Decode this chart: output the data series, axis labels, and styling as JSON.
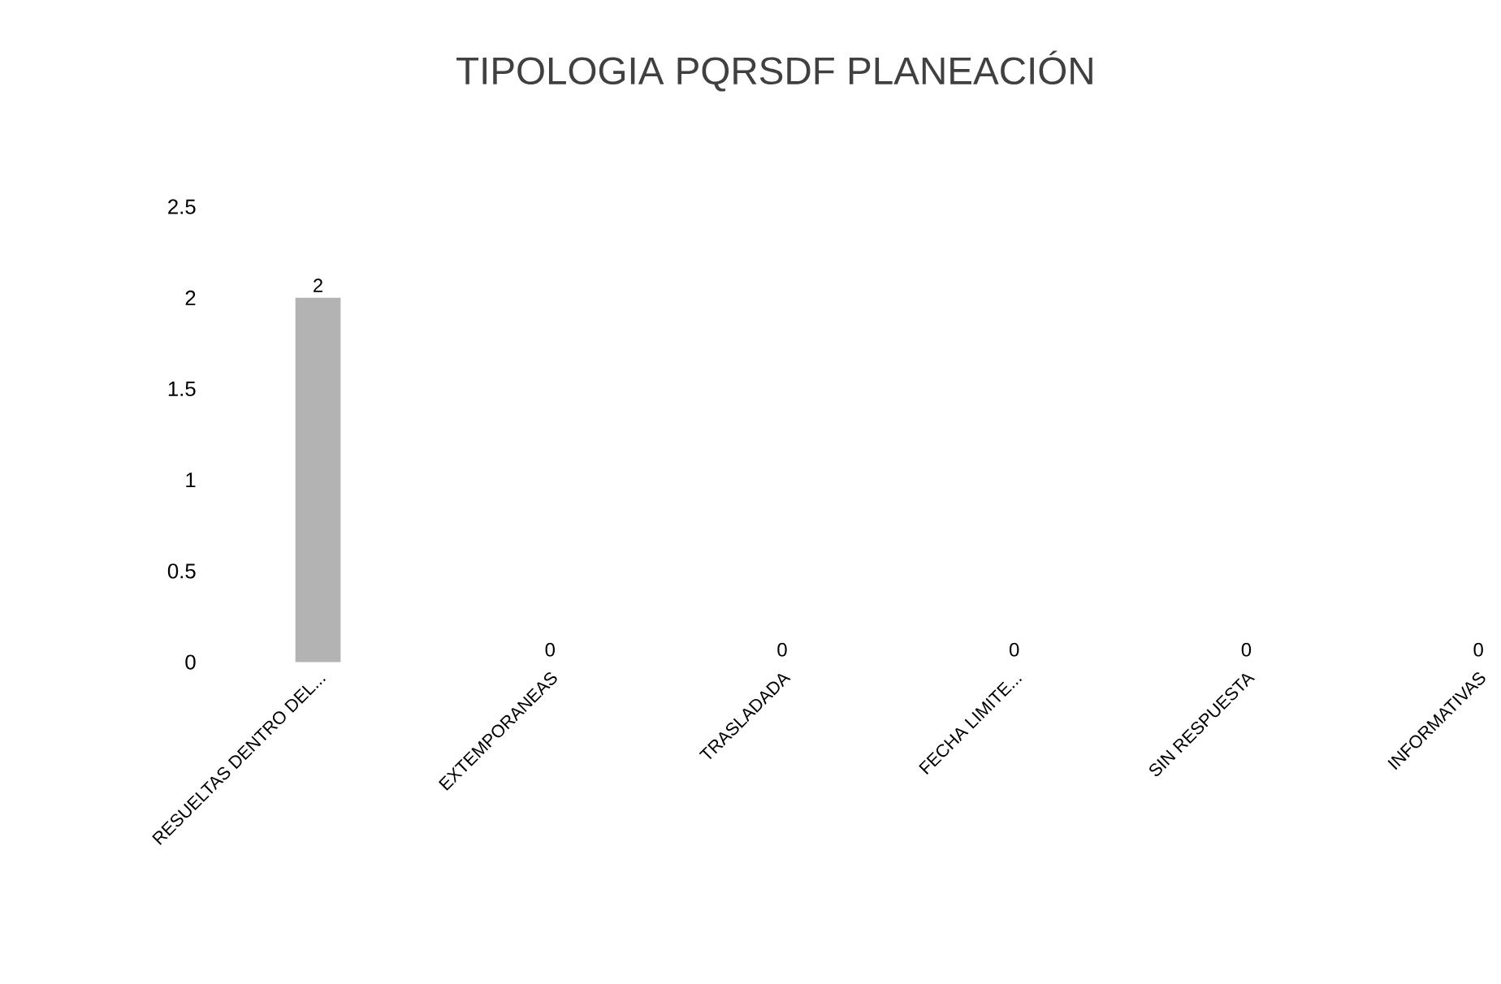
{
  "chart_data": {
    "type": "bar",
    "title": "TIPOLOGIA PQRSDF PLANEACIÓN",
    "categories": [
      "RESUELTAS DENTRO DEL...",
      "EXTEMPORANEAS",
      "TRASLADADA",
      "FECHA LIMITE...",
      "SIN RESPUESTA",
      "INFORMATIVAS"
    ],
    "values": [
      2,
      0,
      0,
      0,
      0,
      0
    ],
    "color": "#b3b3b3",
    "ylim": [
      0,
      2.5
    ],
    "yticks": [
      0,
      0.5,
      1,
      1.5,
      2,
      2.5
    ],
    "data_labels": true
  }
}
